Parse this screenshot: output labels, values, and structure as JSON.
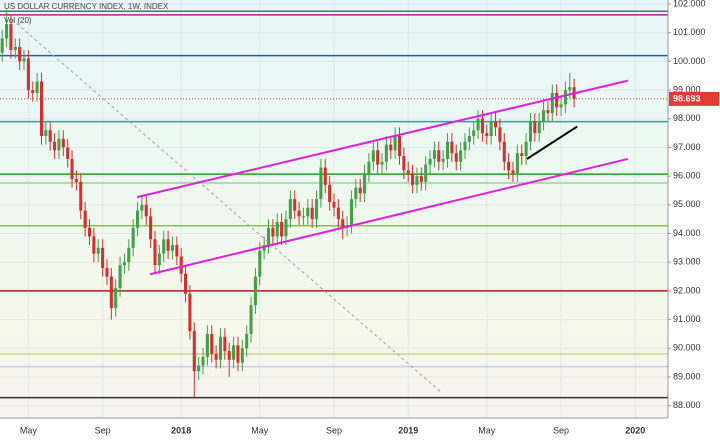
{
  "chart_data": {
    "type": "candlestick",
    "title": "US DOLLAR CURRENCY INDEX, 1W, INDEX",
    "subtitle": "Vol (20)",
    "categories": [
      null,
      null,
      null,
      null,
      null,
      null,
      "May",
      null,
      null,
      null,
      null,
      null,
      null,
      null,
      null,
      null,
      null,
      null,
      null,
      null,
      null,
      null,
      null,
      "Sep",
      null,
      null,
      null,
      null,
      null,
      null,
      null,
      null,
      null,
      null,
      null,
      null,
      null,
      null,
      null,
      null,
      null,
      "2018",
      null,
      null,
      null,
      null,
      null,
      null,
      null,
      null,
      null,
      null,
      null,
      null,
      null,
      null,
      null,
      null,
      null,
      "May",
      null,
      null,
      null,
      null,
      null,
      null,
      null,
      null,
      null,
      null,
      null,
      null,
      null,
      null,
      null,
      null,
      "Sep",
      null,
      null,
      null,
      null,
      null,
      null,
      null,
      null,
      null,
      null,
      null,
      null,
      null,
      null,
      null,
      null,
      "2019",
      null,
      null,
      null,
      null,
      null,
      null,
      null,
      null,
      null,
      null,
      null,
      null,
      null,
      null,
      null,
      null,
      null,
      "May",
      null,
      null,
      null,
      null,
      null,
      null,
      null,
      null,
      null,
      null,
      null,
      null,
      null,
      null,
      null,
      null,
      "Sep",
      null,
      null,
      null,
      null,
      null,
      null,
      null,
      null,
      null,
      null,
      null,
      null,
      null,
      null,
      null,
      null,
      "2020",
      null,
      null,
      null,
      null,
      null,
      null,
      null
    ],
    "open": [
      100.3,
      100.8,
      101.3,
      100.4,
      100.5,
      100.0,
      100.1,
      99.0,
      98.9,
      99.3,
      97.4,
      97.6,
      97.2,
      96.9,
      97.3,
      97.0,
      96.6,
      95.9,
      95.8,
      94.8,
      94.2,
      93.9,
      93.3,
      93.5,
      92.8,
      92.5,
      91.4,
      92.1,
      92.9,
      93.0,
      93.5,
      94.2,
      94.8,
      95.0,
      94.6,
      93.8,
      92.9,
      93.3,
      93.8,
      93.4,
      93.6,
      93.2,
      92.6,
      91.9,
      90.6,
      89.2,
      89.4,
      89.7,
      90.5,
      89.8,
      89.6,
      90.4,
      89.9,
      89.6,
      90.1,
      89.5,
      90.0,
      90.5,
      91.5,
      92.5,
      93.4,
      93.6,
      94.2,
      93.9,
      94.4,
      93.9,
      94.5,
      95.2,
      94.8,
      94.6,
      94.6,
      94.9,
      94.5,
      95.2,
      96.3,
      95.7,
      95.1,
      94.9,
      94.5,
      94.2,
      94.3,
      95.2,
      95.6,
      95.4,
      96.1,
      96.5,
      96.9,
      96.4,
      96.5,
      97.1,
      96.9,
      97.4,
      96.7,
      96.2,
      96.1,
      95.7,
      96.0,
      95.8,
      96.4,
      96.6,
      96.9,
      96.5,
      96.6,
      97.2,
      96.8,
      96.5,
      96.9,
      97.2,
      97.4,
      97.6,
      98.0,
      97.5,
      97.4,
      97.9,
      97.7,
      97.2,
      96.5,
      96.2,
      96.1,
      96.8,
      96.7,
      97.2,
      97.9,
      97.5,
      97.9,
      98.3,
      98.2,
      98.9,
      98.4,
      98.5,
      99.0,
      99.1,
      null,
      null,
      null,
      null,
      null,
      null,
      null,
      null,
      null,
      null,
      null,
      null,
      null,
      null,
      null,
      null,
      null,
      null,
      null,
      null,
      null
    ],
    "high": [
      101.1,
      101.8,
      101.6,
      100.8,
      100.8,
      100.4,
      100.4,
      99.3,
      99.6,
      99.6,
      97.9,
      97.9,
      97.5,
      97.6,
      97.6,
      97.3,
      96.9,
      96.2,
      96.1,
      95.1,
      94.5,
      94.2,
      93.8,
      93.8,
      93.1,
      92.8,
      92.4,
      93.2,
      93.3,
      93.8,
      94.5,
      95.1,
      95.3,
      95.3,
      94.9,
      94.1,
      93.6,
      94.1,
      94.1,
      93.9,
      93.9,
      93.5,
      92.9,
      92.2,
      90.9,
      89.7,
      90.0,
      90.8,
      90.8,
      90.1,
      90.7,
      90.7,
      90.2,
      90.4,
      90.4,
      90.3,
      90.8,
      91.8,
      92.8,
      93.7,
      93.9,
      94.5,
      94.5,
      94.7,
      94.7,
      94.8,
      95.5,
      95.5,
      95.1,
      94.9,
      95.2,
      95.2,
      95.5,
      96.6,
      96.6,
      96.0,
      95.4,
      95.2,
      94.8,
      94.6,
      95.5,
      95.9,
      95.9,
      96.4,
      96.8,
      97.2,
      97.2,
      96.8,
      97.4,
      97.4,
      97.7,
      97.7,
      97.0,
      96.5,
      96.4,
      96.3,
      96.3,
      96.7,
      96.9,
      97.2,
      97.2,
      96.9,
      97.5,
      97.5,
      97.1,
      97.2,
      97.5,
      97.7,
      97.9,
      98.3,
      98.3,
      97.8,
      98.2,
      98.2,
      98.0,
      97.5,
      96.8,
      96.5,
      97.1,
      97.1,
      97.5,
      98.2,
      98.2,
      98.2,
      98.6,
      98.6,
      99.2,
      99.2,
      98.8,
      99.3,
      99.6,
      99.4,
      null,
      null,
      null,
      null,
      null,
      null,
      null,
      null,
      null,
      null,
      null,
      null,
      null,
      null,
      null,
      null,
      null,
      null,
      null,
      null,
      null
    ],
    "low": [
      100.0,
      100.5,
      100.1,
      100.1,
      99.7,
      99.7,
      98.7,
      98.6,
      98.6,
      97.1,
      97.1,
      96.9,
      96.6,
      96.6,
      96.7,
      96.3,
      95.6,
      95.5,
      94.5,
      93.9,
      93.6,
      93.0,
      93.0,
      92.5,
      92.2,
      91.0,
      91.1,
      91.8,
      92.6,
      92.7,
      93.2,
      93.9,
      94.5,
      94.3,
      93.5,
      92.6,
      92.6,
      93.0,
      93.1,
      93.1,
      92.9,
      92.3,
      91.6,
      90.3,
      88.3,
      88.9,
      89.1,
      89.4,
      89.5,
      89.3,
      89.3,
      89.6,
      89.0,
      89.3,
      89.2,
      89.2,
      89.7,
      90.2,
      91.2,
      92.2,
      93.1,
      93.3,
      93.6,
      93.6,
      93.6,
      93.6,
      94.2,
      94.5,
      94.3,
      94.3,
      94.3,
      94.2,
      94.2,
      94.9,
      95.4,
      94.8,
      94.6,
      94.2,
      93.8,
      93.9,
      94.0,
      94.9,
      95.1,
      95.1,
      95.8,
      96.2,
      96.1,
      96.1,
      96.2,
      96.6,
      96.6,
      96.4,
      95.9,
      95.8,
      95.4,
      95.4,
      95.5,
      95.5,
      96.1,
      96.3,
      96.2,
      96.2,
      96.3,
      96.5,
      96.2,
      96.2,
      96.6,
      96.9,
      97.1,
      97.3,
      97.2,
      97.1,
      97.1,
      97.4,
      96.9,
      96.2,
      95.9,
      95.8,
      95.8,
      96.4,
      96.4,
      96.9,
      97.2,
      97.2,
      97.6,
      97.9,
      97.9,
      98.1,
      98.1,
      98.2,
      98.7,
      98.4,
      null,
      null,
      null,
      null,
      null,
      null,
      null,
      null,
      null,
      null,
      null,
      null,
      null,
      null,
      null,
      null,
      null,
      null,
      null,
      null,
      null
    ],
    "close": [
      100.8,
      101.3,
      100.4,
      100.5,
      100.0,
      100.1,
      99.0,
      98.9,
      99.3,
      97.4,
      97.6,
      97.2,
      96.9,
      97.3,
      97.0,
      96.6,
      95.9,
      95.8,
      94.8,
      94.2,
      93.9,
      93.3,
      93.5,
      92.8,
      92.5,
      91.4,
      92.1,
      92.9,
      93.0,
      93.5,
      94.2,
      94.8,
      95.0,
      94.6,
      93.8,
      92.9,
      93.3,
      93.8,
      93.4,
      93.6,
      93.2,
      92.6,
      91.9,
      90.6,
      89.2,
      89.4,
      89.7,
      90.5,
      89.8,
      89.6,
      90.4,
      89.9,
      89.6,
      90.1,
      89.5,
      90.0,
      90.5,
      91.5,
      92.5,
      93.4,
      93.6,
      94.2,
      93.9,
      94.4,
      93.9,
      94.5,
      95.2,
      94.8,
      94.6,
      94.6,
      94.9,
      94.5,
      95.2,
      96.3,
      95.7,
      95.1,
      94.9,
      94.5,
      94.2,
      94.3,
      95.2,
      95.6,
      95.4,
      96.1,
      96.5,
      96.9,
      96.4,
      96.5,
      97.1,
      96.9,
      97.4,
      96.7,
      96.2,
      96.1,
      95.7,
      96.0,
      95.8,
      96.4,
      96.6,
      96.9,
      96.5,
      96.6,
      97.2,
      96.8,
      96.5,
      96.9,
      97.2,
      97.4,
      97.6,
      98.0,
      97.5,
      97.4,
      97.9,
      97.7,
      97.2,
      96.5,
      96.2,
      96.1,
      96.8,
      96.7,
      97.2,
      97.9,
      97.5,
      97.9,
      98.3,
      98.2,
      98.9,
      98.4,
      98.5,
      99.0,
      99.1,
      98.693,
      null,
      null,
      null,
      null,
      null,
      null,
      null,
      null,
      null,
      null,
      null,
      null,
      null,
      null,
      null,
      null,
      null,
      null,
      null,
      null,
      null
    ],
    "up_color": "#43a047",
    "down_color": "#d32f2f",
    "ylim": [
      87.57,
      102.14
    ],
    "yticks": [
      {
        "value": 88,
        "label": "88.000"
      },
      {
        "value": 89,
        "label": "89.000"
      },
      {
        "value": 90,
        "label": "90.000"
      },
      {
        "value": 91,
        "label": "91.000"
      },
      {
        "value": 92,
        "label": "92.000"
      },
      {
        "value": 93,
        "label": "93.000"
      },
      {
        "value": 94,
        "label": "94.000"
      },
      {
        "value": 95,
        "label": "95.000"
      },
      {
        "value": 96,
        "label": "96.000"
      },
      {
        "value": 97,
        "label": "97.000"
      },
      {
        "value": 98,
        "label": "98.000"
      },
      {
        "value": 99,
        "label": "99.000"
      },
      {
        "value": 100,
        "label": "100.000"
      },
      {
        "value": 101,
        "label": "101.000"
      },
      {
        "value": 102,
        "label": "102.000"
      }
    ],
    "grid": true,
    "hlines": [
      {
        "value": 101.75,
        "color": "#666666"
      },
      {
        "value": 101.62,
        "color": "#c2189b"
      },
      {
        "value": 100.2,
        "color": "#1e5fa8"
      },
      {
        "value": 97.9,
        "color": "#26a69a"
      },
      {
        "value": 96.07,
        "color": "#1fa31f"
      },
      {
        "value": 95.76,
        "color": "#98d598"
      },
      {
        "value": 94.27,
        "color": "#8bc34a"
      },
      {
        "value": 92.0,
        "color": "#b71c1c"
      },
      {
        "value": 89.8,
        "color": "#d8d08a"
      },
      {
        "value": 89.36,
        "color": "#c9c9ef"
      },
      {
        "value": 88.28,
        "color": "#333333"
      }
    ],
    "trendlines": [
      {
        "x": [
          2.25,
          100.3
        ],
        "y": [
          101.46,
          88.5
        ],
        "color": "#9e9e9e",
        "dash": true
      },
      {
        "x": [
          30.9,
          143.3
        ],
        "y": [
          95.27,
          99.33
        ],
        "color": "#e01fe0",
        "dash": false
      },
      {
        "x": [
          33.9,
          143.3
        ],
        "y": [
          92.58,
          96.6
        ],
        "color": "#e01fe0",
        "dash": false
      },
      {
        "x": [
          120.2,
          131.7
        ],
        "y": [
          96.6,
          97.73
        ],
        "color": "#000000",
        "dash": false
      }
    ],
    "last_price_color": "#e53935"
  }
}
